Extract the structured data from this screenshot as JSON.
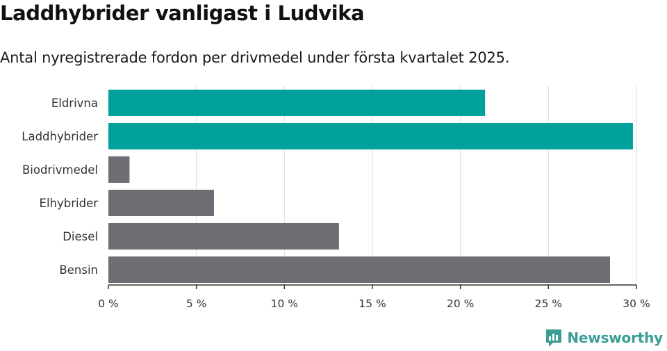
{
  "title": "Laddhybrider vanligast i Ludvika",
  "subtitle": "Antal nyregistrerade fordon per drivmedel under första kvartalet 2025.",
  "brand": {
    "name": "Newsworthy",
    "icon": "newsworthy-logo-icon"
  },
  "colors": {
    "highlight": "#00a19a",
    "default": "#6e6d74",
    "grid": "#dddddd",
    "axis": "#333333"
  },
  "chart_data": {
    "type": "bar",
    "orientation": "horizontal",
    "categories": [
      "Eldrivna",
      "Laddhybrider",
      "Biodrivmedel",
      "Elhybrider",
      "Diesel",
      "Bensin"
    ],
    "values": [
      21.4,
      29.8,
      1.2,
      6.0,
      13.1,
      28.5
    ],
    "highlighted": [
      true,
      true,
      false,
      false,
      false,
      false
    ],
    "xlim": [
      0,
      30
    ],
    "xticks": [
      0,
      5,
      10,
      15,
      20,
      25,
      30
    ],
    "tick_labels": [
      "0 %",
      "5 %",
      "10 %",
      "15 %",
      "20 %",
      "25 %",
      "30 %"
    ],
    "xlabel": "",
    "ylabel": "",
    "grid": true,
    "legend": "none"
  }
}
